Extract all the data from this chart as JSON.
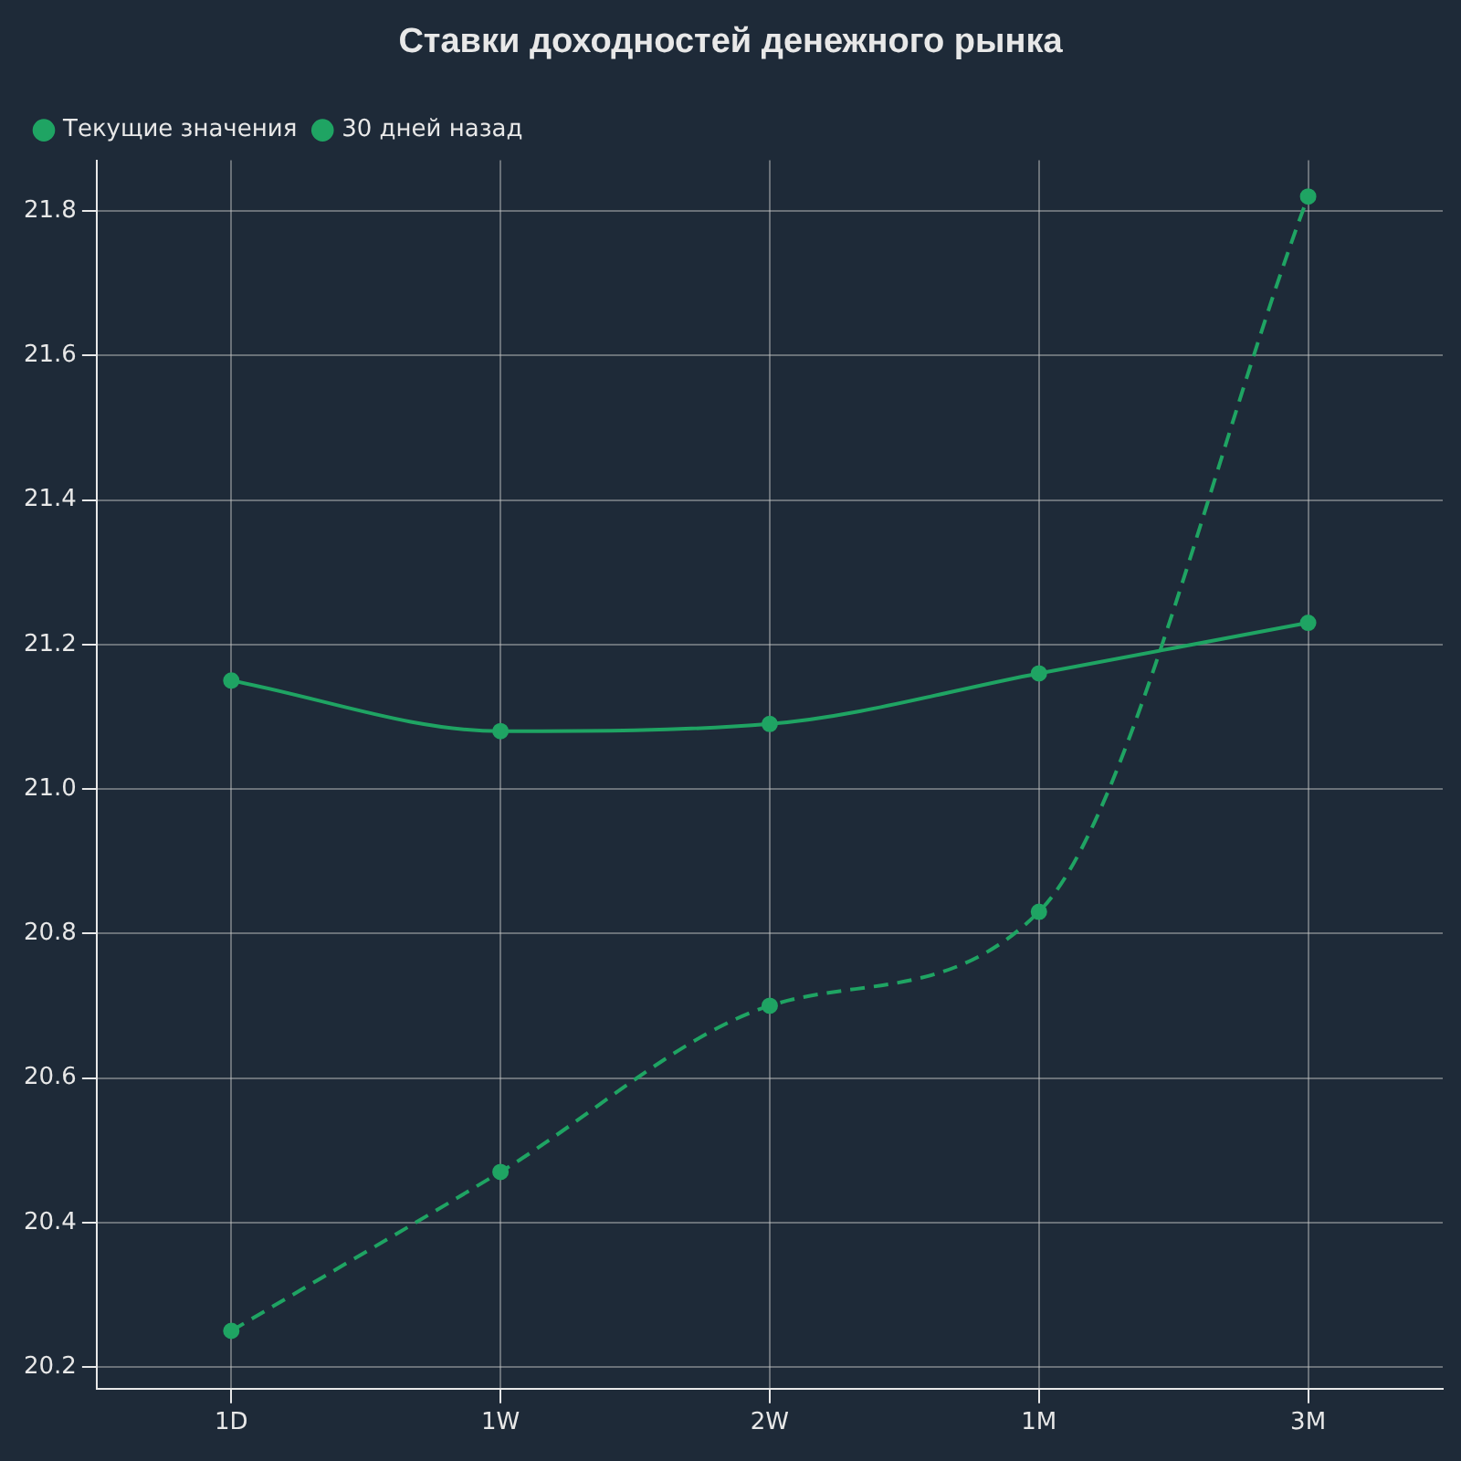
{
  "chart_data": {
    "type": "line",
    "title": "Ставки доходностей денежного рынка",
    "categories": [
      "1D",
      "1W",
      "2W",
      "1M",
      "3M"
    ],
    "ylim": [
      20.17,
      21.87
    ],
    "yticks": [
      20.2,
      20.4,
      20.6,
      20.8,
      {
        "value": 21.0,
        "label": "21.0"
      },
      21.2,
      21.4,
      21.6,
      21.8
    ],
    "series": [
      {
        "name": "Текущие значения",
        "color": "#1fa463",
        "values": [
          21.15,
          21.08,
          21.09,
          21.16,
          21.23
        ],
        "line_style": "solid"
      },
      {
        "name": "30 дней назад",
        "color": "#1fa463",
        "values": [
          20.25,
          20.47,
          20.7,
          20.83,
          21.82
        ],
        "line_style": "dashed"
      }
    ],
    "grid": true,
    "legend": "top left",
    "marker": "circle"
  }
}
